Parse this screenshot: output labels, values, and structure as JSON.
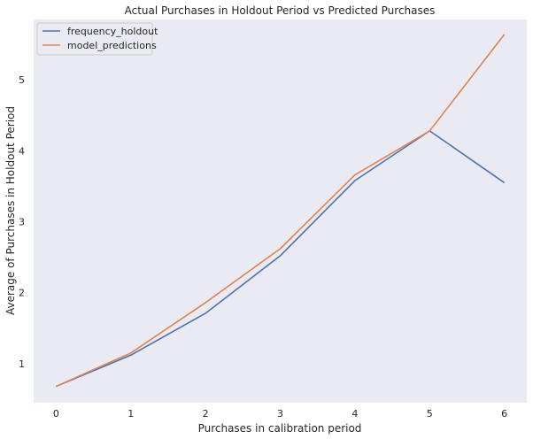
{
  "chart_data": {
    "type": "line",
    "title": "Actual Purchases in Holdout Period vs Predicted Purchases",
    "xlabel": "Purchases in calibration period",
    "ylabel": "Average of Purchases in Holdout Period",
    "x": [
      0,
      1,
      2,
      3,
      4,
      5,
      6
    ],
    "xlim": [
      -0.3,
      6.3
    ],
    "ylim": [
      0.45,
      5.85
    ],
    "xticks": [
      0,
      1,
      2,
      3,
      4,
      5,
      6
    ],
    "yticks": [
      1,
      2,
      3,
      4,
      5
    ],
    "grid": false,
    "legend": "top-left",
    "series": [
      {
        "name": "frequency_holdout",
        "color": "#4c72b0",
        "values": [
          0.68,
          1.12,
          1.71,
          2.52,
          3.58,
          4.28,
          3.55
        ]
      },
      {
        "name": "model_predictions",
        "color": "#dd8452",
        "values": [
          0.68,
          1.15,
          1.86,
          2.62,
          3.66,
          4.28,
          5.64
        ]
      }
    ]
  }
}
